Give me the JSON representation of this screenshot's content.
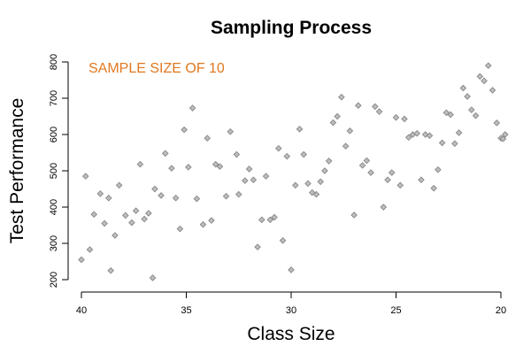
{
  "chart_data": {
    "type": "scatter",
    "title": "Sampling Process",
    "xlabel": "Class Size",
    "ylabel": "Test Performance",
    "annotation": {
      "text": "SAMPLE SIZE OF 10",
      "color": "#e07820"
    },
    "xlim": [
      40,
      20
    ],
    "ylim": [
      200,
      800
    ],
    "x_reversed": true,
    "xticks": [
      40,
      35,
      30,
      25,
      20
    ],
    "yticks": [
      200,
      300,
      400,
      500,
      600,
      700,
      800
    ],
    "grid": false,
    "marker": {
      "shape": "diamond",
      "fill": "#bdbdbd",
      "stroke": "#7f7f7f"
    },
    "points": [
      {
        "x": 40.0,
        "y": 255
      },
      {
        "x": 39.8,
        "y": 485
      },
      {
        "x": 39.6,
        "y": 283
      },
      {
        "x": 39.4,
        "y": 380
      },
      {
        "x": 39.1,
        "y": 437
      },
      {
        "x": 38.9,
        "y": 355
      },
      {
        "x": 38.7,
        "y": 425
      },
      {
        "x": 38.6,
        "y": 225
      },
      {
        "x": 38.4,
        "y": 322
      },
      {
        "x": 38.2,
        "y": 460
      },
      {
        "x": 37.9,
        "y": 377
      },
      {
        "x": 37.6,
        "y": 357
      },
      {
        "x": 37.4,
        "y": 390
      },
      {
        "x": 37.2,
        "y": 518
      },
      {
        "x": 37.0,
        "y": 367
      },
      {
        "x": 36.8,
        "y": 383
      },
      {
        "x": 36.6,
        "y": 205
      },
      {
        "x": 36.5,
        "y": 450
      },
      {
        "x": 36.2,
        "y": 432
      },
      {
        "x": 36.0,
        "y": 548
      },
      {
        "x": 35.7,
        "y": 507
      },
      {
        "x": 35.5,
        "y": 425
      },
      {
        "x": 35.3,
        "y": 340
      },
      {
        "x": 35.1,
        "y": 613
      },
      {
        "x": 34.9,
        "y": 510
      },
      {
        "x": 34.7,
        "y": 673
      },
      {
        "x": 34.5,
        "y": 423
      },
      {
        "x": 34.2,
        "y": 352
      },
      {
        "x": 34.0,
        "y": 590
      },
      {
        "x": 33.8,
        "y": 363
      },
      {
        "x": 33.6,
        "y": 518
      },
      {
        "x": 33.4,
        "y": 512
      },
      {
        "x": 33.1,
        "y": 430
      },
      {
        "x": 32.9,
        "y": 608
      },
      {
        "x": 32.6,
        "y": 545
      },
      {
        "x": 32.5,
        "y": 435
      },
      {
        "x": 32.2,
        "y": 473
      },
      {
        "x": 32.0,
        "y": 505
      },
      {
        "x": 31.8,
        "y": 475
      },
      {
        "x": 31.6,
        "y": 290
      },
      {
        "x": 31.4,
        "y": 365
      },
      {
        "x": 31.2,
        "y": 485
      },
      {
        "x": 31.0,
        "y": 365
      },
      {
        "x": 30.8,
        "y": 372
      },
      {
        "x": 30.6,
        "y": 562
      },
      {
        "x": 30.4,
        "y": 308
      },
      {
        "x": 30.2,
        "y": 540
      },
      {
        "x": 30.0,
        "y": 227
      },
      {
        "x": 29.8,
        "y": 460
      },
      {
        "x": 29.6,
        "y": 615
      },
      {
        "x": 29.4,
        "y": 545
      },
      {
        "x": 29.2,
        "y": 465
      },
      {
        "x": 29.0,
        "y": 440
      },
      {
        "x": 28.8,
        "y": 435
      },
      {
        "x": 28.6,
        "y": 470
      },
      {
        "x": 28.4,
        "y": 500
      },
      {
        "x": 28.2,
        "y": 527
      },
      {
        "x": 28.0,
        "y": 633
      },
      {
        "x": 27.8,
        "y": 650
      },
      {
        "x": 27.6,
        "y": 703
      },
      {
        "x": 27.4,
        "y": 568
      },
      {
        "x": 27.2,
        "y": 610
      },
      {
        "x": 27.0,
        "y": 378
      },
      {
        "x": 26.8,
        "y": 680
      },
      {
        "x": 26.6,
        "y": 515
      },
      {
        "x": 26.4,
        "y": 528
      },
      {
        "x": 26.2,
        "y": 495
      },
      {
        "x": 26.0,
        "y": 677
      },
      {
        "x": 25.8,
        "y": 663
      },
      {
        "x": 25.6,
        "y": 400
      },
      {
        "x": 25.4,
        "y": 475
      },
      {
        "x": 25.2,
        "y": 495
      },
      {
        "x": 25.0,
        "y": 647
      },
      {
        "x": 24.8,
        "y": 460
      },
      {
        "x": 24.6,
        "y": 643
      },
      {
        "x": 24.4,
        "y": 592
      },
      {
        "x": 24.2,
        "y": 600
      },
      {
        "x": 24.0,
        "y": 603
      },
      {
        "x": 23.8,
        "y": 475
      },
      {
        "x": 23.6,
        "y": 600
      },
      {
        "x": 23.4,
        "y": 597
      },
      {
        "x": 23.2,
        "y": 452
      },
      {
        "x": 23.0,
        "y": 503
      },
      {
        "x": 22.8,
        "y": 577
      },
      {
        "x": 22.6,
        "y": 660
      },
      {
        "x": 22.4,
        "y": 655
      },
      {
        "x": 22.2,
        "y": 575
      },
      {
        "x": 22.0,
        "y": 605
      },
      {
        "x": 21.8,
        "y": 728
      },
      {
        "x": 21.6,
        "y": 705
      },
      {
        "x": 21.4,
        "y": 668
      },
      {
        "x": 21.2,
        "y": 652
      },
      {
        "x": 21.0,
        "y": 760
      },
      {
        "x": 20.8,
        "y": 748
      },
      {
        "x": 20.6,
        "y": 790
      },
      {
        "x": 20.4,
        "y": 722
      },
      {
        "x": 20.2,
        "y": 632
      },
      {
        "x": 20.0,
        "y": 590
      },
      {
        "x": 19.9,
        "y": 588
      },
      {
        "x": 19.8,
        "y": 600
      }
    ]
  }
}
